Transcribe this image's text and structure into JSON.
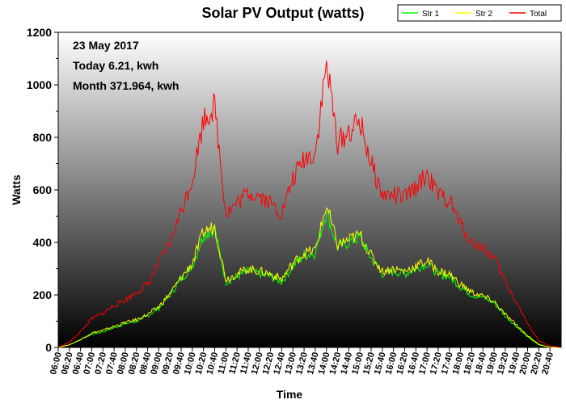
{
  "chart_data": {
    "type": "line",
    "title": "Solar PV Output (watts)",
    "xlabel": "Time",
    "ylabel": "Watts",
    "ylim": [
      0,
      1200
    ],
    "yticks": [
      0,
      200,
      400,
      600,
      800,
      1000,
      1200
    ],
    "xlim": [
      "06:00",
      "21:00"
    ],
    "xticks": [
      "06:00",
      "06:20",
      "06:40",
      "07:00",
      "07:20",
      "07:40",
      "08:00",
      "08:20",
      "08:40",
      "09:00",
      "09:20",
      "09:40",
      "10:00",
      "10:20",
      "10:40",
      "11:00",
      "11:20",
      "11:40",
      "12:00",
      "12:20",
      "12:40",
      "13:00",
      "13:20",
      "13:40",
      "14:00",
      "14:20",
      "14:40",
      "15:00",
      "15:20",
      "15:40",
      "16:00",
      "16:20",
      "16:40",
      "17:00",
      "17:20",
      "17:40",
      "18:00",
      "18:20",
      "18:40",
      "19:00",
      "19:20",
      "19:40",
      "20:00",
      "20:20",
      "20:40"
    ],
    "legend_position": "top-right",
    "annotations": [
      "23 May 2017",
      "Today 6.21, kwh",
      "Month 371.964, kwh"
    ],
    "x": [
      "06:00",
      "06:20",
      "06:40",
      "07:00",
      "07:20",
      "07:40",
      "08:00",
      "08:20",
      "08:40",
      "09:00",
      "09:20",
      "09:40",
      "10:00",
      "10:20",
      "10:40",
      "11:00",
      "11:20",
      "11:40",
      "12:00",
      "12:20",
      "12:40",
      "13:00",
      "13:20",
      "13:40",
      "14:00",
      "14:20",
      "14:40",
      "15:00",
      "15:20",
      "15:40",
      "16:00",
      "16:20",
      "16:40",
      "17:00",
      "17:20",
      "17:40",
      "18:00",
      "18:20",
      "18:40",
      "19:00",
      "19:20",
      "19:40",
      "20:00",
      "20:20",
      "20:40",
      "21:00"
    ],
    "series": [
      {
        "name": "Str 1",
        "color": "#00ff00",
        "values": [
          0,
          10,
          30,
          50,
          60,
          75,
          90,
          100,
          120,
          150,
          200,
          260,
          310,
          430,
          450,
          250,
          270,
          290,
          280,
          270,
          250,
          310,
          350,
          360,
          520,
          380,
          400,
          420,
          340,
          280,
          290,
          280,
          300,
          320,
          280,
          270,
          230,
          200,
          190,
          170,
          120,
          80,
          40,
          10,
          0,
          0
        ]
      },
      {
        "name": "Str 2",
        "color": "#ffff00",
        "values": [
          0,
          10,
          30,
          55,
          65,
          80,
          95,
          105,
          125,
          155,
          205,
          265,
          320,
          440,
          460,
          260,
          280,
          300,
          290,
          280,
          260,
          320,
          360,
          370,
          540,
          390,
          410,
          430,
          350,
          290,
          300,
          290,
          310,
          330,
          290,
          280,
          240,
          210,
          195,
          175,
          125,
          85,
          45,
          12,
          0,
          0
        ]
      },
      {
        "name": "Total",
        "color": "#ff0000",
        "values": [
          0,
          20,
          60,
          110,
          130,
          160,
          180,
          210,
          240,
          320,
          400,
          520,
          640,
          870,
          920,
          510,
          550,
          590,
          580,
          550,
          510,
          640,
          720,
          740,
          1080,
          780,
          820,
          860,
          700,
          580,
          580,
          570,
          610,
          660,
          580,
          560,
          470,
          400,
          380,
          340,
          250,
          170,
          90,
          25,
          5,
          0
        ]
      }
    ]
  }
}
